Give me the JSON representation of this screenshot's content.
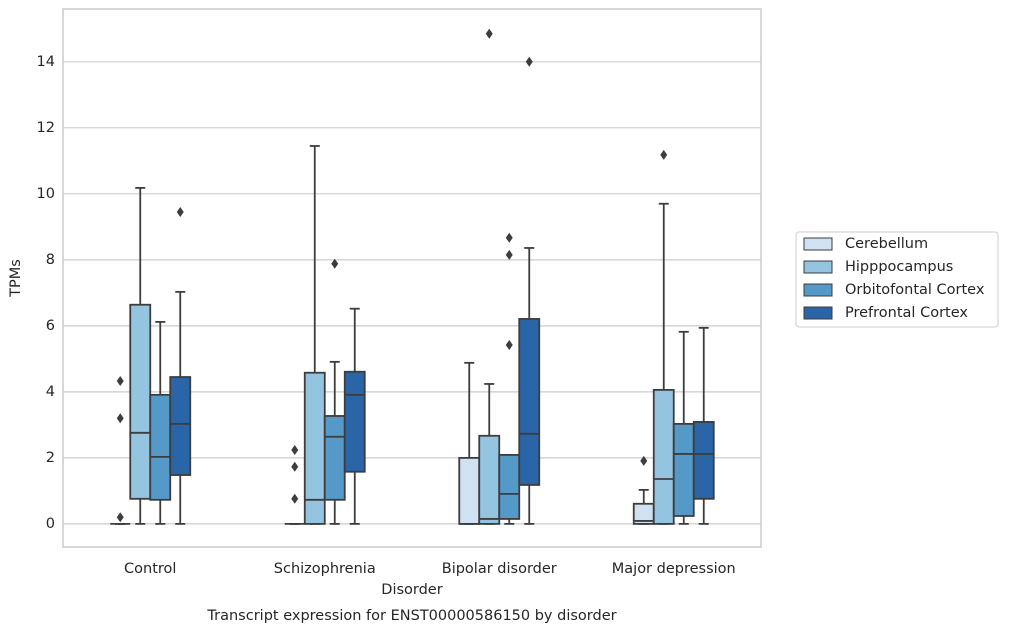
{
  "chart_data": {
    "type": "box",
    "caption": "Transcript expression for ENST00000586150 by disorder",
    "x_label": "Disorder",
    "y_label": "TPMs",
    "categories": [
      "Control",
      "Schizophrenia",
      "Bipolar disorder",
      "Major depression"
    ],
    "ylim": [
      -0.7,
      15.6
    ],
    "yticks": [
      0,
      2,
      4,
      6,
      8,
      10,
      12,
      14
    ],
    "grid": true,
    "legend": "right",
    "series": [
      {
        "name": "Cerebellum",
        "color": "#d0e1f2",
        "boxes": [
          {
            "min": 0,
            "q1": 0,
            "median": 0,
            "q3": 0,
            "max": 0,
            "outliers": [
              0.2,
              3.2,
              4.33
            ]
          },
          {
            "min": 0,
            "q1": 0,
            "median": 0,
            "q3": 0,
            "max": 0,
            "outliers": [
              0.76,
              1.73,
              2.24
            ]
          },
          {
            "min": 0,
            "q1": 0,
            "median": 0,
            "q3": 2.0,
            "max": 4.88,
            "outliers": []
          },
          {
            "min": 0,
            "q1": 0,
            "median": 0.09,
            "q3": 0.61,
            "max": 1.03,
            "outliers": [
              1.91
            ]
          }
        ]
      },
      {
        "name": "Hipppocampus",
        "color": "#94c4df",
        "boxes": [
          {
            "min": 0,
            "q1": 0.76,
            "median": 2.76,
            "q3": 6.64,
            "max": 10.18,
            "outliers": []
          },
          {
            "min": 0,
            "q1": 0,
            "median": 0.73,
            "q3": 4.58,
            "max": 11.45,
            "outliers": []
          },
          {
            "min": 0,
            "q1": 0,
            "median": 0.15,
            "q3": 2.67,
            "max": 4.24,
            "outliers": [
              14.85
            ]
          },
          {
            "min": 0,
            "q1": 0,
            "median": 1.36,
            "q3": 4.06,
            "max": 9.7,
            "outliers": [
              11.18
            ]
          }
        ]
      },
      {
        "name": "Orbitofontal Cortex",
        "color": "#5599c8",
        "boxes": [
          {
            "min": 0,
            "q1": 0.73,
            "median": 2.03,
            "q3": 3.91,
            "max": 6.12,
            "outliers": []
          },
          {
            "min": 0,
            "q1": 0.73,
            "median": 2.64,
            "q3": 3.27,
            "max": 4.91,
            "outliers": [
              7.88
            ]
          },
          {
            "min": 0,
            "q1": 0.15,
            "median": 0.91,
            "q3": 2.09,
            "max": 2.09,
            "outliers": [
              5.42,
              8.15,
              8.67
            ]
          },
          {
            "min": 0,
            "q1": 0.24,
            "median": 2.12,
            "q3": 3.03,
            "max": 5.82,
            "outliers": []
          }
        ]
      },
      {
        "name": "Prefrontal Cortex",
        "color": "#2a65a8",
        "boxes": [
          {
            "min": 0,
            "q1": 1.48,
            "median": 3.03,
            "q3": 4.45,
            "max": 7.03,
            "outliers": [
              9.45
            ]
          },
          {
            "min": 0,
            "q1": 1.58,
            "median": 3.91,
            "q3": 4.61,
            "max": 6.52,
            "outliers": []
          },
          {
            "min": 0,
            "q1": 1.18,
            "median": 2.73,
            "q3": 6.21,
            "max": 8.36,
            "outliers": [
              14.0
            ]
          },
          {
            "min": 0,
            "q1": 0.76,
            "median": 2.12,
            "q3": 3.09,
            "max": 5.94,
            "outliers": []
          }
        ]
      }
    ]
  }
}
